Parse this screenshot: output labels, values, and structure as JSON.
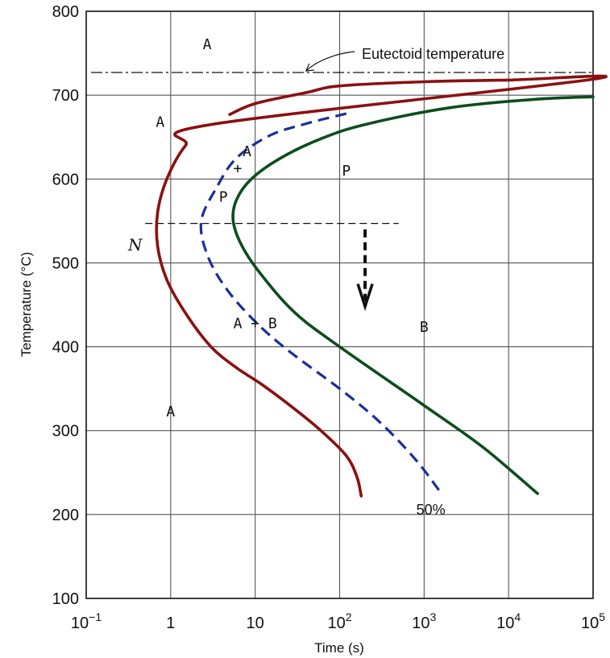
{
  "chart_data": {
    "type": "line",
    "xlabel": "Time (s)",
    "ylabel": "Temperature (°C)",
    "x_scale": "log",
    "xlim": [
      0.1,
      100000
    ],
    "ylim": [
      100,
      800
    ],
    "grid": true,
    "x_ticks": [
      {
        "value": 0.1,
        "base": "10",
        "exp": "−1"
      },
      {
        "value": 1,
        "base": "1",
        "exp": ""
      },
      {
        "value": 10,
        "base": "10",
        "exp": ""
      },
      {
        "value": 100,
        "base": "10",
        "exp": "2"
      },
      {
        "value": 1000,
        "base": "10",
        "exp": "3"
      },
      {
        "value": 10000,
        "base": "10",
        "exp": "4"
      },
      {
        "value": 100000,
        "base": "10",
        "exp": "5"
      }
    ],
    "y_ticks": [
      {
        "value": 100,
        "label": "100"
      },
      {
        "value": 200,
        "label": "200"
      },
      {
        "value": 300,
        "label": "300"
      },
      {
        "value": 400,
        "label": "400"
      },
      {
        "value": 500,
        "label": "500"
      },
      {
        "value": 600,
        "label": "600"
      },
      {
        "value": 700,
        "label": "700"
      },
      {
        "value": 800,
        "label": "800"
      }
    ],
    "series": [
      {
        "key": "start",
        "color": "#8b1010",
        "dash": "solid",
        "points": [
          [
            5,
            677
          ],
          [
            10,
            690
          ],
          [
            40,
            703
          ],
          [
            100,
            711
          ],
          [
            1000,
            716
          ],
          [
            10000,
            718
          ],
          [
            100000,
            719
          ],
          [
            3,
            665
          ],
          [
            1.5,
            640
          ],
          [
            0.9,
            600
          ],
          [
            0.7,
            560
          ],
          [
            0.7,
            520
          ],
          [
            0.9,
            480
          ],
          [
            1.5,
            440
          ],
          [
            3,
            400
          ],
          [
            6,
            375
          ],
          [
            12,
            355
          ],
          [
            30,
            325
          ],
          [
            60,
            300
          ],
          [
            120,
            270
          ],
          [
            160,
            245
          ],
          [
            180,
            222
          ]
        ]
      },
      {
        "key": "half",
        "name": "50%",
        "color": "#1a2f9a",
        "dash": "dashed",
        "points": [
          [
            120,
            678
          ],
          [
            40,
            666
          ],
          [
            15,
            652
          ],
          [
            6,
            625
          ],
          [
            3.5,
            590
          ],
          [
            2.3,
            550
          ],
          [
            2.7,
            510
          ],
          [
            4.5,
            470
          ],
          [
            10,
            430
          ],
          [
            25,
            395
          ],
          [
            100,
            350
          ],
          [
            300,
            310
          ],
          [
            800,
            265
          ],
          [
            1600,
            225
          ]
        ]
      },
      {
        "key": "finish",
        "color": "#0d4d1c",
        "dash": "solid",
        "points": [
          [
            100000,
            698
          ],
          [
            20000,
            695
          ],
          [
            2000,
            685
          ],
          [
            200,
            665
          ],
          [
            60,
            648
          ],
          [
            20,
            625
          ],
          [
            9,
            600
          ],
          [
            6,
            575
          ],
          [
            5.5,
            550
          ],
          [
            7,
            520
          ],
          [
            12,
            485
          ],
          [
            30,
            440
          ],
          [
            100,
            400
          ],
          [
            1000,
            330
          ],
          [
            5000,
            280
          ],
          [
            22000,
            225
          ]
        ]
      }
    ],
    "reference_lines": {
      "eutectoid": {
        "y": 727,
        "label": "Eutectoid temperature"
      },
      "isotherm": {
        "y": 547,
        "x_start": 0.5,
        "x_end": 500
      }
    },
    "arrow": {
      "x": 200,
      "y_from": 540,
      "y_to": 450
    },
    "regions": [
      {
        "text": "A",
        "x": 2.7,
        "y": 755
      },
      {
        "text": "A",
        "x": 0.75,
        "y": 662
      },
      {
        "text": "A",
        "x": 8,
        "y": 627
      },
      {
        "text": "+",
        "x": 6.2,
        "y": 607
      },
      {
        "text": "P",
        "x": 4.2,
        "y": 573
      },
      {
        "text": "P",
        "x": 120,
        "y": 604
      },
      {
        "text": "A + B",
        "x": 10,
        "y": 422
      },
      {
        "text": "B",
        "x": 1000,
        "y": 418
      },
      {
        "text": "A",
        "x": 1,
        "y": 317
      }
    ],
    "curve_labels": [
      {
        "text": "N",
        "x": 0.38,
        "y": 515
      },
      {
        "text": "50%",
        "x": 1200,
        "y": 200
      }
    ]
  }
}
